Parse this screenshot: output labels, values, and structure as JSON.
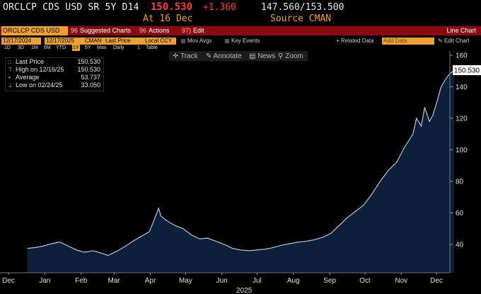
{
  "header": {
    "ticker": "ORCLCP CDS USD SR 5Y D14",
    "last_price": "150.530",
    "change": "+1.360",
    "bid_ask": "147.560/153.500",
    "at_date": "At 16 Dec",
    "source": "Source CMAN"
  },
  "menubar": {
    "security": "ORCLCP CDS USD SR",
    "suggested_num": "96",
    "suggested": "Suggested Charts",
    "actions_num": "96",
    "actions": "Actions",
    "edit_num": "97)",
    "edit": "Edit",
    "chart_type": "Line Chart"
  },
  "toolbar": {
    "start_date": "12/17/2024",
    "dash": "-",
    "end_date": "12/17/2025",
    "pricing_source": "CMAN",
    "field": "Last Price",
    "currency": "Local CCY",
    "mov_avgs": "Mov Avgs",
    "key_events": "Key Events",
    "related_data": "+ Related Data",
    "add_data": "Add Data",
    "edit_chart": "Edit Chart"
  },
  "periods": [
    {
      "label": "1D",
      "active": false
    },
    {
      "label": "3D",
      "active": false
    },
    {
      "label": "1M",
      "active": false
    },
    {
      "label": "6M",
      "active": false
    },
    {
      "label": "YTD",
      "active": false
    },
    {
      "label": "1Y",
      "active": true
    },
    {
      "label": "5Y",
      "active": false
    },
    {
      "label": "Max",
      "active": false
    },
    {
      "label": "Daily",
      "active": false
    },
    {
      "label": "1",
      "active": false
    },
    {
      "label": "Table",
      "active": false
    }
  ],
  "tools": {
    "track": "Track",
    "annotate": "Annotate",
    "news": "News",
    "zoom": "Zoom"
  },
  "legend": [
    {
      "label": "Last Price",
      "value": "150.530"
    },
    {
      "label": "High on 12/16/25",
      "value": "150.530"
    },
    {
      "label": "Average",
      "value": "53.737"
    },
    {
      "label": "Low on 02/24/25",
      "value": "33.050"
    }
  ],
  "colors": {
    "series_line": "#c9d3e6",
    "series_fill": "#0d1f3a",
    "accent": "#f0a030",
    "menubar": "#8b0a10",
    "last_price_red": "#ff3f3f"
  },
  "chart_data": {
    "type": "area",
    "title": "",
    "xlabel": "2025",
    "ylabel": "",
    "ylim": [
      25,
      162
    ],
    "y_ticks": [
      40,
      60,
      80,
      100,
      120,
      140,
      160
    ],
    "x_ticks": [
      "Dec",
      "Jan",
      "Feb",
      "Mar",
      "Apr",
      "May",
      "Jun",
      "Jul",
      "Aug",
      "Sep",
      "Oct",
      "Nov",
      "Dec"
    ],
    "x_tick_dates": [
      "2024-12-01",
      "2025-01-01",
      "2025-02-01",
      "2025-03-01",
      "2025-04-01",
      "2025-05-01",
      "2025-06-01",
      "2025-07-01",
      "2025-08-01",
      "2025-09-01",
      "2025-10-01",
      "2025-11-01",
      "2025-12-01"
    ],
    "year_label": "2025",
    "last_value_label": "150.530",
    "series": [
      {
        "name": "Last Price",
        "points": [
          [
            "2024-12-17",
            37.5
          ],
          [
            "2024-12-24",
            38.0
          ],
          [
            "2024-12-31",
            39.0
          ],
          [
            "2025-01-07",
            40.5
          ],
          [
            "2025-01-14",
            41.5
          ],
          [
            "2025-01-21",
            39.0
          ],
          [
            "2025-01-28",
            36.5
          ],
          [
            "2025-02-04",
            35.0
          ],
          [
            "2025-02-11",
            36.0
          ],
          [
            "2025-02-18",
            34.5
          ],
          [
            "2025-02-24",
            33.05
          ],
          [
            "2025-03-03",
            35.5
          ],
          [
            "2025-03-10",
            38.5
          ],
          [
            "2025-03-17",
            42.0
          ],
          [
            "2025-03-24",
            45.0
          ],
          [
            "2025-03-31",
            48.0
          ],
          [
            "2025-04-04",
            55.0
          ],
          [
            "2025-04-08",
            63.0
          ],
          [
            "2025-04-10",
            58.0
          ],
          [
            "2025-04-15",
            55.0
          ],
          [
            "2025-04-22",
            52.0
          ],
          [
            "2025-04-29",
            50.0
          ],
          [
            "2025-05-06",
            46.0
          ],
          [
            "2025-05-13",
            43.5
          ],
          [
            "2025-05-20",
            44.0
          ],
          [
            "2025-05-27",
            42.0
          ],
          [
            "2025-06-03",
            40.0
          ],
          [
            "2025-06-10",
            37.5
          ],
          [
            "2025-06-17",
            36.5
          ],
          [
            "2025-06-24",
            36.0
          ],
          [
            "2025-07-01",
            36.5
          ],
          [
            "2025-07-08",
            37.0
          ],
          [
            "2025-07-15",
            38.0
          ],
          [
            "2025-07-22",
            39.5
          ],
          [
            "2025-07-29",
            40.5
          ],
          [
            "2025-08-05",
            41.5
          ],
          [
            "2025-08-12",
            42.0
          ],
          [
            "2025-08-19",
            43.0
          ],
          [
            "2025-08-26",
            44.5
          ],
          [
            "2025-09-02",
            47.0
          ],
          [
            "2025-09-09",
            52.0
          ],
          [
            "2025-09-16",
            57.0
          ],
          [
            "2025-09-23",
            61.0
          ],
          [
            "2025-09-30",
            65.0
          ],
          [
            "2025-10-07",
            72.0
          ],
          [
            "2025-10-14",
            80.0
          ],
          [
            "2025-10-21",
            87.0
          ],
          [
            "2025-10-28",
            92.0
          ],
          [
            "2025-11-04",
            102.0
          ],
          [
            "2025-11-11",
            110.0
          ],
          [
            "2025-11-14",
            120.0
          ],
          [
            "2025-11-18",
            115.0
          ],
          [
            "2025-11-21",
            127.0
          ],
          [
            "2025-11-25",
            118.0
          ],
          [
            "2025-11-28",
            122.0
          ],
          [
            "2025-12-02",
            132.0
          ],
          [
            "2025-12-05",
            140.0
          ],
          [
            "2025-12-09",
            145.0
          ],
          [
            "2025-12-12",
            148.0
          ],
          [
            "2025-12-16",
            150.53
          ]
        ]
      }
    ]
  }
}
